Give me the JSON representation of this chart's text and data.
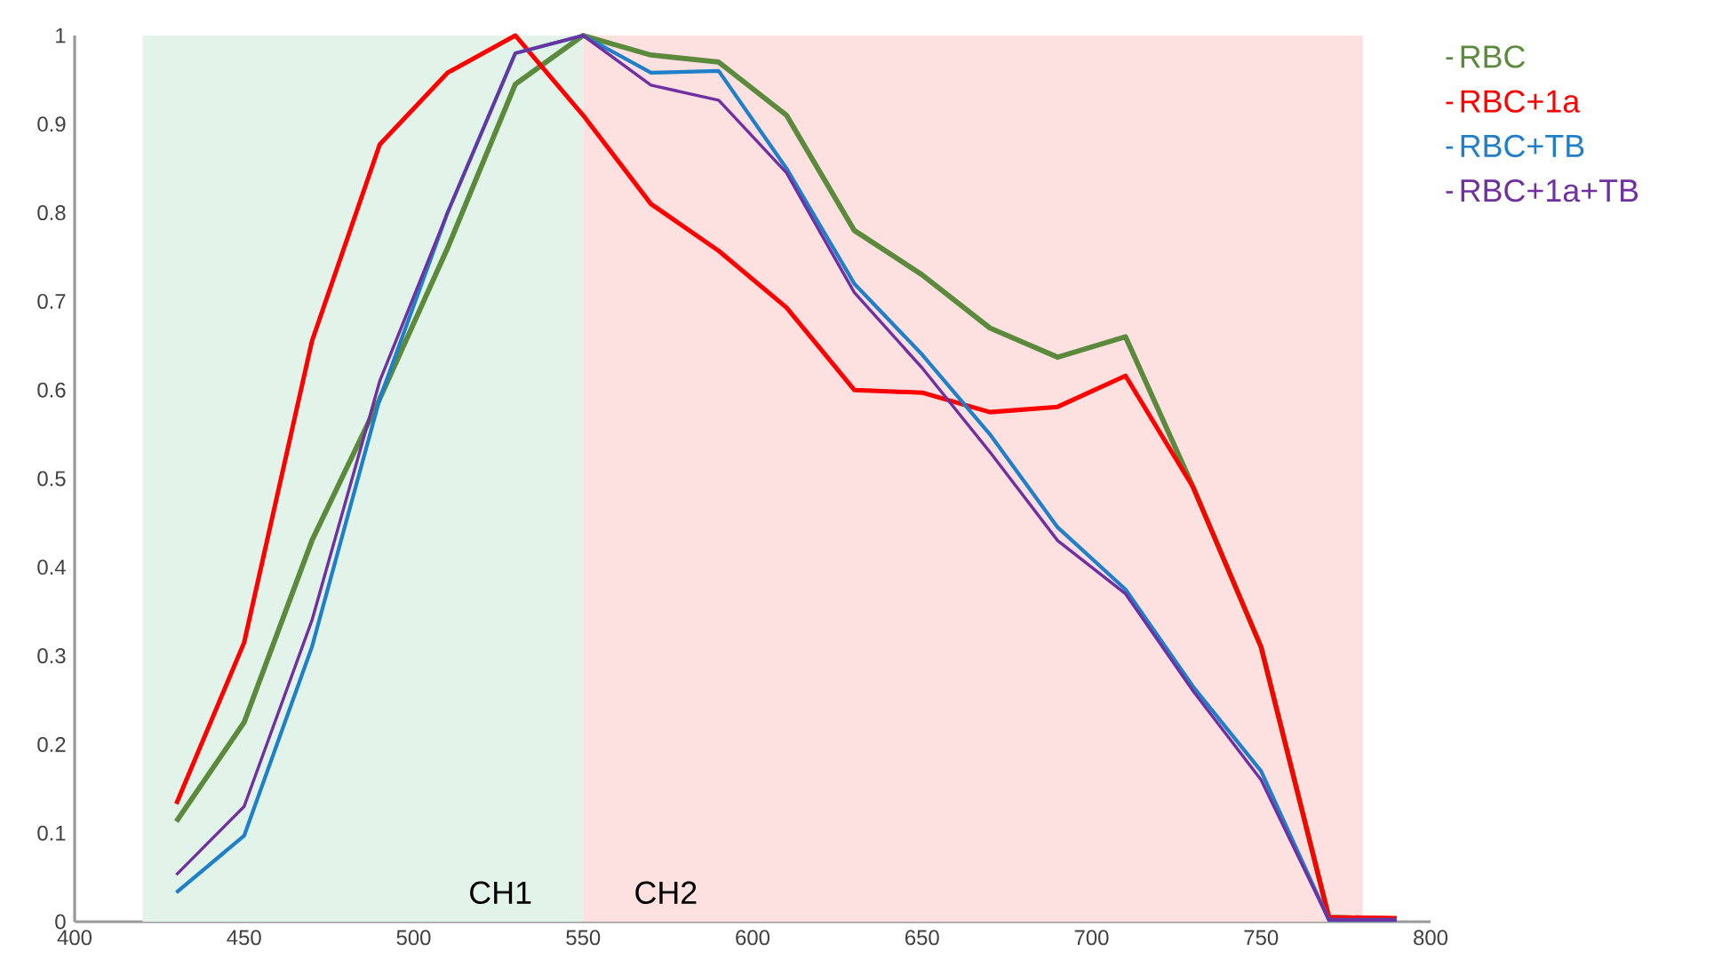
{
  "chart_data": {
    "type": "line",
    "x": [
      430,
      450,
      470,
      490,
      510,
      530,
      550,
      570,
      590,
      610,
      630,
      650,
      670,
      690,
      710,
      730,
      750,
      770,
      790
    ],
    "series": [
      {
        "name": "RBC",
        "color": "#5b8a3c",
        "values": [
          0.113,
          0.225,
          0.43,
          0.59,
          0.76,
          0.945,
          1.0,
          0.978,
          0.97,
          0.91,
          0.78,
          0.73,
          0.67,
          0.637,
          0.66,
          0.49,
          0.31,
          0.005,
          0.003
        ]
      },
      {
        "name": "RBC+1a",
        "color": "#ff0000",
        "values": [
          0.133,
          0.315,
          0.655,
          0.877,
          0.958,
          1.0,
          0.91,
          0.81,
          0.757,
          0.693,
          0.6,
          0.597,
          0.575,
          0.581,
          0.616,
          0.49,
          0.31,
          0.005,
          0.004
        ]
      },
      {
        "name": "RBC+TB",
        "color": "#1f7fc8",
        "values": [
          0.033,
          0.097,
          0.31,
          0.59,
          0.8,
          0.98,
          1.0,
          0.958,
          0.96,
          0.85,
          0.72,
          0.64,
          0.55,
          0.445,
          0.375,
          0.265,
          0.17,
          0.002,
          0.002
        ]
      },
      {
        "name": "RBC+1a+TB",
        "color": "#7030a0",
        "values": [
          0.053,
          0.13,
          0.34,
          0.61,
          0.8,
          0.98,
          1.0,
          0.944,
          0.927,
          0.845,
          0.71,
          0.625,
          0.53,
          0.43,
          0.37,
          0.26,
          0.16,
          0.002,
          0.002
        ]
      }
    ],
    "bands": [
      {
        "axis": "x",
        "from": 420,
        "to": 550,
        "label": "CH1",
        "color": "#e2f4ea"
      },
      {
        "axis": "x",
        "from": 550,
        "to": 780,
        "label": "CH2",
        "color": "#fde0e0"
      }
    ],
    "xlim": [
      400,
      800
    ],
    "xticks": [
      400,
      450,
      500,
      550,
      600,
      650,
      700,
      750,
      800
    ],
    "ylim": [
      0,
      1
    ],
    "yticks": [
      0,
      0.1,
      0.2,
      0.3,
      0.4,
      0.5,
      0.6,
      0.7,
      0.8,
      0.9,
      1
    ],
    "grid": false,
    "legend": "right",
    "line_style": "solid",
    "marker": "none"
  }
}
